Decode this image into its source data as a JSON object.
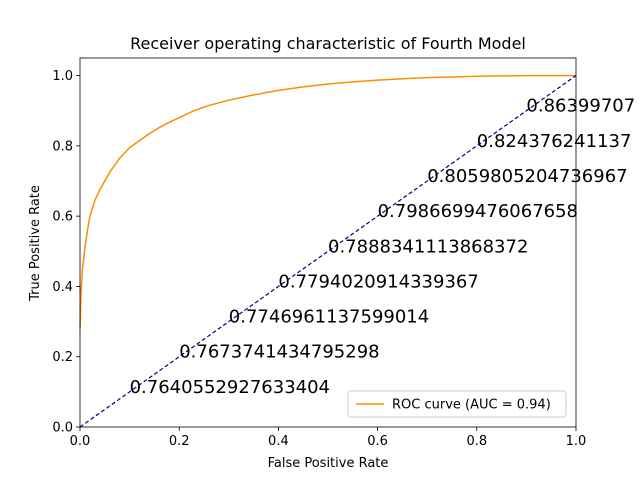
{
  "chart_data": {
    "type": "line",
    "title": "Receiver operating characteristic of Fourth Model",
    "xlabel": "False Positive Rate",
    "ylabel": "True Positive Rate",
    "xlim": [
      0.0,
      1.0
    ],
    "ylim": [
      0.0,
      1.05
    ],
    "xticks": [
      "0.0",
      "0.2",
      "0.4",
      "0.6",
      "0.8",
      "1.0"
    ],
    "yticks": [
      "0.0",
      "0.2",
      "0.4",
      "0.6",
      "0.8",
      "1.0"
    ],
    "grid": false,
    "legend": {
      "placement": "lower-right",
      "entries": [
        "ROC curve (AUC = 0.94)"
      ]
    },
    "series": [
      {
        "name": "ROC curve (AUC = 0.94)",
        "color": "#ff8c00",
        "style": "solid",
        "x": [
          0.0,
          0.002,
          0.005,
          0.01,
          0.015,
          0.02,
          0.03,
          0.04,
          0.05,
          0.06,
          0.07,
          0.08,
          0.09,
          0.1,
          0.12,
          0.14,
          0.16,
          0.18,
          0.2,
          0.23,
          0.26,
          0.3,
          0.35,
          0.4,
          0.45,
          0.5,
          0.55,
          0.6,
          0.65,
          0.7,
          0.75,
          0.8,
          0.85,
          0.9,
          0.95,
          1.0
        ],
        "y": [
          0.28,
          0.38,
          0.45,
          0.51,
          0.56,
          0.6,
          0.645,
          0.675,
          0.7,
          0.725,
          0.745,
          0.765,
          0.78,
          0.795,
          0.815,
          0.835,
          0.852,
          0.867,
          0.88,
          0.9,
          0.915,
          0.93,
          0.945,
          0.958,
          0.968,
          0.976,
          0.982,
          0.987,
          0.991,
          0.994,
          0.996,
          0.998,
          0.999,
          1.0,
          1.0,
          1.0
        ]
      },
      {
        "name": "",
        "color": "#000080",
        "style": "dashed",
        "x": [
          0.0,
          1.0
        ],
        "y": [
          0.0,
          1.0
        ]
      }
    ],
    "annotations": [
      {
        "text": "0.7640552927633404",
        "x": 0.1,
        "y": 0.1
      },
      {
        "text": "0.7673741434795298",
        "x": 0.2,
        "y": 0.2
      },
      {
        "text": "0.7746961137599014",
        "x": 0.3,
        "y": 0.3
      },
      {
        "text": "0.7794020914339367",
        "x": 0.4,
        "y": 0.4
      },
      {
        "text": "0.7888341113868372",
        "x": 0.5,
        "y": 0.5
      },
      {
        "text": "0.7986699476067658",
        "x": 0.6,
        "y": 0.6
      },
      {
        "text": "0.8059805204736967",
        "x": 0.7,
        "y": 0.7
      },
      {
        "text": "0.824376241137",
        "x": 0.8,
        "y": 0.8
      },
      {
        "text": "0.86399707",
        "x": 0.9,
        "y": 0.9
      }
    ]
  }
}
